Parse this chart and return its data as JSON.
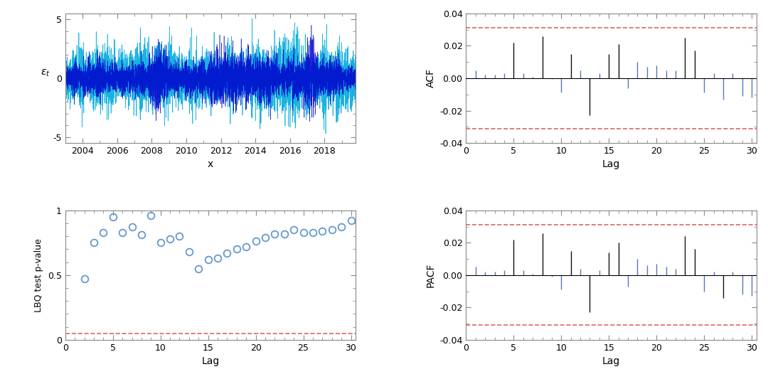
{
  "ts_xlabel": "x",
  "ts_xlim": [
    2003.0,
    2019.8
  ],
  "ts_ylim": [
    -5.5,
    5.5
  ],
  "ts_yticks": [
    -5,
    0,
    5
  ],
  "ts_xticks": [
    2004,
    2006,
    2008,
    2010,
    2012,
    2014,
    2016,
    2018
  ],
  "acf_ylabel": "ACF",
  "acf_xlabel": "Lag",
  "acf_xlim": [
    0.5,
    30.5
  ],
  "acf_ylim": [
    -0.04,
    0.04
  ],
  "acf_yticks": [
    -0.04,
    -0.02,
    0,
    0.02,
    0.04
  ],
  "acf_xticks": [
    0,
    5,
    10,
    15,
    20,
    25,
    30
  ],
  "acf_conf": 0.031,
  "acf_lags": [
    1,
    2,
    3,
    4,
    5,
    6,
    7,
    8,
    9,
    10,
    11,
    12,
    13,
    14,
    15,
    16,
    17,
    18,
    19,
    20,
    21,
    22,
    23,
    24,
    25,
    26,
    27,
    28,
    29,
    30
  ],
  "acf_values": [
    0.005,
    0.002,
    0.002,
    0.003,
    0.022,
    0.003,
    0.001,
    0.026,
    -0.0005,
    -0.009,
    0.015,
    0.005,
    -0.023,
    0.003,
    0.015,
    0.021,
    -0.006,
    0.01,
    0.007,
    0.008,
    0.005,
    0.005,
    0.025,
    0.017,
    -0.009,
    0.003,
    -0.013,
    0.003,
    -0.011,
    -0.012
  ],
  "lbq_ylabel": "LBQ test p-value",
  "lbq_xlabel": "Lag",
  "lbq_xlim": [
    0.5,
    30.5
  ],
  "lbq_ylim": [
    0,
    1.0
  ],
  "lbq_yticks": [
    0,
    0.5,
    1
  ],
  "lbq_xticks": [
    0,
    5,
    10,
    15,
    20,
    25,
    30
  ],
  "lbq_conf": 0.05,
  "lbq_lags": [
    2,
    3,
    4,
    5,
    6,
    7,
    8,
    9,
    10,
    11,
    12,
    13,
    14,
    15,
    16,
    17,
    18,
    19,
    20,
    21,
    22,
    23,
    24,
    25,
    26,
    27,
    28,
    29,
    30
  ],
  "lbq_values": [
    0.47,
    0.75,
    0.83,
    0.95,
    0.83,
    0.87,
    0.81,
    0.96,
    0.75,
    0.78,
    0.8,
    0.68,
    0.55,
    0.62,
    0.63,
    0.67,
    0.7,
    0.72,
    0.76,
    0.79,
    0.82,
    0.82,
    0.85,
    0.83,
    0.83,
    0.84,
    0.85,
    0.87,
    0.92
  ],
  "pacf_ylabel": "PACF",
  "pacf_xlabel": "Lag",
  "pacf_xlim": [
    0.5,
    30.5
  ],
  "pacf_ylim": [
    -0.04,
    0.04
  ],
  "pacf_yticks": [
    -0.04,
    -0.02,
    0,
    0.02,
    0.04
  ],
  "pacf_xticks": [
    0,
    5,
    10,
    15,
    20,
    25,
    30
  ],
  "pacf_conf": 0.031,
  "pacf_lags": [
    1,
    2,
    3,
    4,
    5,
    6,
    7,
    8,
    9,
    10,
    11,
    12,
    13,
    14,
    15,
    16,
    17,
    18,
    19,
    20,
    21,
    22,
    23,
    24,
    25,
    26,
    27,
    28,
    29,
    30
  ],
  "pacf_values": [
    0.005,
    0.002,
    0.002,
    0.003,
    0.022,
    0.003,
    0.001,
    0.026,
    -0.001,
    -0.009,
    0.015,
    0.004,
    -0.023,
    0.003,
    0.014,
    0.02,
    -0.007,
    0.01,
    0.006,
    0.007,
    0.005,
    0.004,
    0.024,
    0.016,
    -0.01,
    0.002,
    -0.014,
    0.002,
    -0.012,
    -0.013
  ],
  "ts_color_dark": "#0000cc",
  "ts_color_light": "#00aadd",
  "bar_color_blue": "#5577bb",
  "bar_color_black": "#111111",
  "conf_color": "#dd6666",
  "circle_color": "#6699cc",
  "spine_color": "#888888",
  "background_color": "#ffffff",
  "seed": 42,
  "n_points": 4500
}
